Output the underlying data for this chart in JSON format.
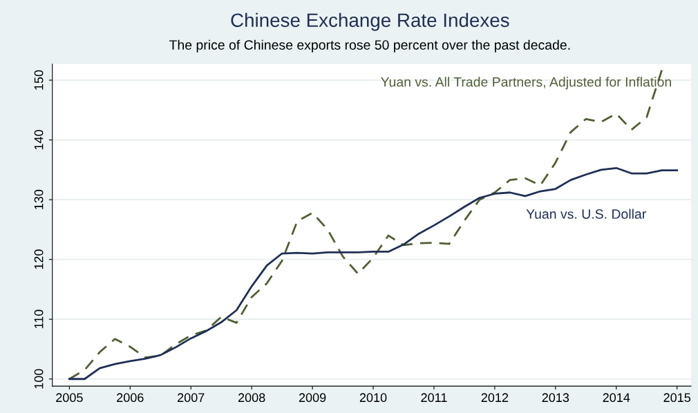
{
  "chart_data": {
    "type": "line",
    "title": "Chinese Exchange Rate Indexes",
    "subtitle": "The price of Chinese exports rose 50 percent over the past decade.",
    "x": [
      2005,
      2005.25,
      2005.5,
      2005.75,
      2006,
      2006.25,
      2006.5,
      2006.75,
      2007,
      2007.25,
      2007.5,
      2007.75,
      2008,
      2008.25,
      2008.5,
      2008.75,
      2009,
      2009.25,
      2009.5,
      2009.75,
      2010,
      2010.25,
      2010.5,
      2010.75,
      2011,
      2011.25,
      2011.5,
      2011.75,
      2012,
      2012.25,
      2012.5,
      2012.75,
      2013,
      2013.25,
      2013.5,
      2013.75,
      2014,
      2014.25,
      2014.5,
      2014.75,
      2015
    ],
    "series": [
      {
        "name": "Yuan vs. All Trade Partners, Adjusted for Inflation",
        "color": "#4f5f35",
        "line_style": "dashed",
        "x": [
          2005,
          2005.25,
          2005.5,
          2005.75,
          2006,
          2006.25,
          2006.5,
          2006.75,
          2007,
          2007.25,
          2007.5,
          2007.75,
          2008,
          2008.25,
          2008.5,
          2008.75,
          2009,
          2009.25,
          2009.5,
          2009.75,
          2010,
          2010.25,
          2010.5,
          2010.75,
          2011,
          2011.25,
          2011.5,
          2011.75,
          2012,
          2012.25,
          2012.5,
          2012.75,
          2013,
          2013.25,
          2013.5,
          2013.75,
          2014,
          2014.25,
          2014.5,
          2014.75
        ],
        "values": [
          100,
          101.5,
          104.5,
          106.7,
          105.4,
          103.6,
          103.9,
          105.8,
          107.3,
          108.1,
          110.4,
          109.4,
          113.7,
          116,
          119.8,
          126.4,
          127.8,
          125,
          120.5,
          117.6,
          120.3,
          124,
          122.4,
          122.7,
          122.8,
          122.6,
          126.5,
          130,
          131.2,
          133.3,
          133.6,
          132.4,
          136.2,
          141.3,
          143.5,
          143,
          144.4,
          141.7,
          143.8,
          151.7
        ]
      },
      {
        "name": "Yuan vs. U.S. Dollar",
        "color": "#1f2f55",
        "line_style": "solid",
        "values": [
          100,
          100,
          101.8,
          102.5,
          103,
          103.4,
          104,
          105.3,
          106.8,
          108,
          109.5,
          111.5,
          115.5,
          119,
          121,
          121.1,
          121,
          121.2,
          121.2,
          121.2,
          121.3,
          121.3,
          122.5,
          124.3,
          125.7,
          127.2,
          128.8,
          130.3,
          131,
          131.2,
          130.6,
          131.4,
          131.8,
          133.3,
          134.2,
          135,
          135.3,
          134.4,
          134.4,
          134.9,
          134.9
        ]
      }
    ],
    "xlim": [
      2004.72,
      2015.23
    ],
    "ylim": [
      98.8,
      152.7
    ],
    "xticks": [
      2005,
      2006,
      2007,
      2008,
      2009,
      2010,
      2011,
      2012,
      2013,
      2014,
      2015
    ],
    "yticks": [
      100,
      110,
      120,
      130,
      140,
      150
    ],
    "grid": "y",
    "legend": false,
    "marker": "none"
  }
}
